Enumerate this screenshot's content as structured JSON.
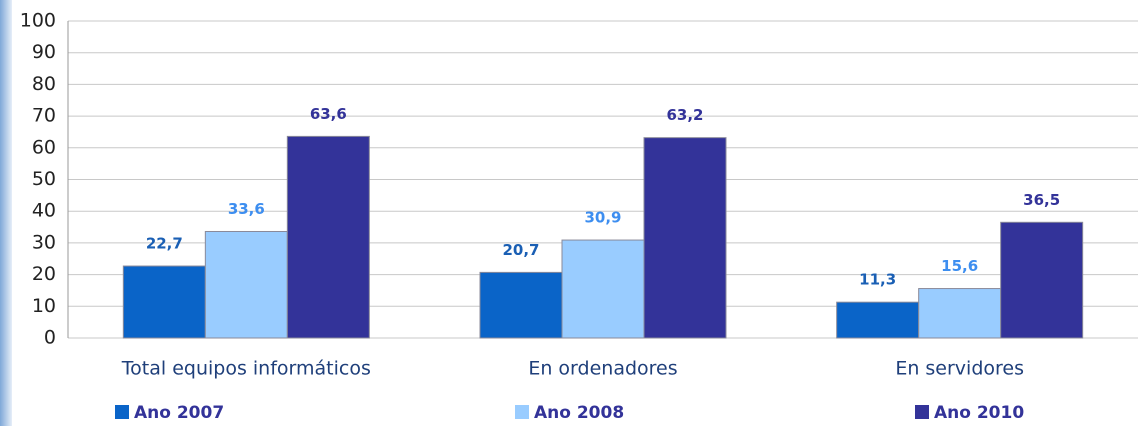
{
  "chart_data": {
    "type": "bar",
    "categories": [
      "Total equipos informáticos",
      "En ordenadores",
      "En servidores"
    ],
    "series": [
      {
        "name": "Ano 2007",
        "color": "#0a64c8",
        "label_color": "#1a5fb4",
        "values": [
          22.7,
          20.7,
          11.3
        ],
        "value_labels": [
          "22,7",
          "20,7",
          "11,3"
        ]
      },
      {
        "name": "Ano 2008",
        "color": "#99ccff",
        "label_color": "#3d8ef0",
        "values": [
          33.6,
          30.9,
          15.6
        ],
        "value_labels": [
          "33,6",
          "30,9",
          "15,6"
        ]
      },
      {
        "name": "Ano 2010",
        "color": "#333399",
        "label_color": "#333399",
        "values": [
          63.6,
          63.2,
          36.5
        ],
        "value_labels": [
          "63,6",
          "63,2",
          "36,5"
        ]
      }
    ],
    "ylim": [
      0,
      100
    ],
    "yticks": [
      0,
      10,
      20,
      30,
      40,
      50,
      60,
      70,
      80,
      90,
      100
    ],
    "grid": true,
    "legend": "bottom"
  }
}
